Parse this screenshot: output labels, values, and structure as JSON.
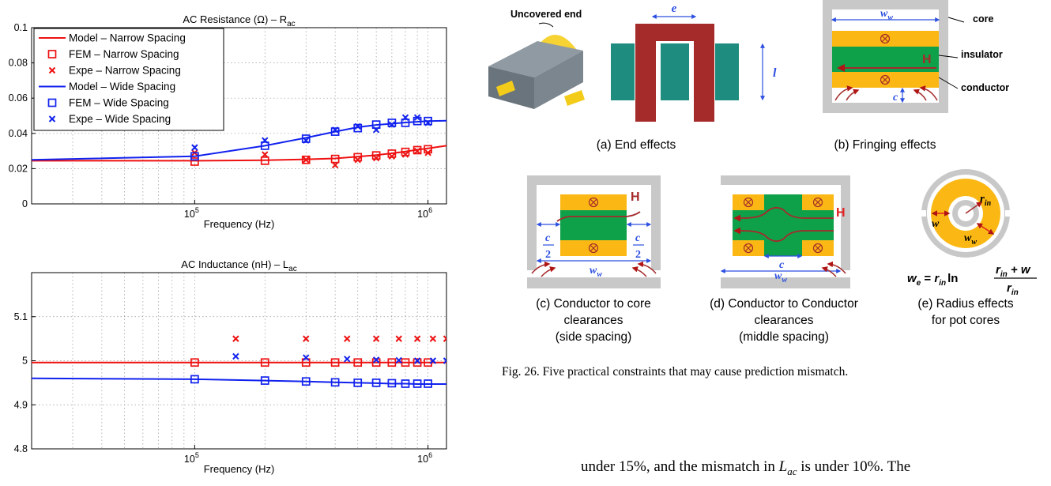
{
  "chart_data": [
    {
      "type": "line",
      "title": "AC Resistance (Ω) – R",
      "title_sub": "ac",
      "xlabel": "Frequency (Hz)",
      "ylabel": "",
      "xscale": "log",
      "xlim": [
        20000,
        1200000
      ],
      "ylim": [
        0,
        0.1
      ],
      "yticks": [
        "0",
        "0.02",
        "0.04",
        "0.06",
        "0.08",
        "0.1"
      ],
      "xticks": [
        {
          "value": 100000,
          "base": "10",
          "exp": "5"
        },
        {
          "value": 1000000,
          "base": "10",
          "exp": "6"
        }
      ],
      "grid": true,
      "legend_position": "top-left",
      "series": [
        {
          "name": "Model – Narrow Spacing",
          "style": "line",
          "color": "#ee1111",
          "x": [
            20000,
            100000,
            200000,
            300000,
            400000,
            500000,
            600000,
            700000,
            800000,
            900000,
            1000000,
            1200000
          ],
          "y": [
            0.0245,
            0.0245,
            0.0248,
            0.0253,
            0.0258,
            0.0268,
            0.0277,
            0.0287,
            0.0297,
            0.0307,
            0.0315,
            0.033
          ]
        },
        {
          "name": "FEM – Narrow Spacing",
          "style": "square",
          "color": "#ee1111",
          "x": [
            100000,
            200000,
            300000,
            400000,
            500000,
            600000,
            700000,
            800000,
            900000,
            1000000
          ],
          "y": [
            0.024,
            0.0245,
            0.025,
            0.0255,
            0.0265,
            0.0275,
            0.0285,
            0.0295,
            0.0305,
            0.031
          ]
        },
        {
          "name": "Expe – Narrow Spacing",
          "style": "x",
          "color": "#ee1111",
          "x": [
            100000,
            200000,
            300000,
            400000,
            500000,
            600000,
            700000,
            800000,
            900000,
            1000000
          ],
          "y": [
            0.029,
            0.028,
            0.025,
            0.022,
            0.025,
            0.026,
            0.027,
            0.028,
            0.03,
            0.029
          ]
        },
        {
          "name": "Model – Wide Spacing",
          "style": "line",
          "color": "#1122ee",
          "x": [
            20000,
            100000,
            200000,
            300000,
            400000,
            500000,
            600000,
            700000,
            800000,
            900000,
            1000000,
            1200000
          ],
          "y": [
            0.025,
            0.027,
            0.033,
            0.0375,
            0.041,
            0.0435,
            0.0448,
            0.0455,
            0.0462,
            0.0466,
            0.047,
            0.0472
          ]
        },
        {
          "name": "FEM – Wide Spacing",
          "style": "square",
          "color": "#1122ee",
          "x": [
            100000,
            200000,
            300000,
            400000,
            500000,
            600000,
            700000,
            800000,
            900000,
            1000000
          ],
          "y": [
            0.027,
            0.033,
            0.037,
            0.041,
            0.043,
            0.045,
            0.046,
            0.046,
            0.047,
            0.047
          ]
        },
        {
          "name": "Expe – Wide Spacing",
          "style": "x",
          "color": "#1122ee",
          "x": [
            100000,
            200000,
            300000,
            400000,
            500000,
            600000,
            700000,
            800000,
            900000,
            1000000
          ],
          "y": [
            0.032,
            0.036,
            0.036,
            0.042,
            0.044,
            0.042,
            0.045,
            0.049,
            0.049,
            0.046
          ]
        }
      ]
    },
    {
      "type": "line",
      "title": "AC Inductance (nH) – L",
      "title_sub": "ac",
      "xlabel": "Frequency (Hz)",
      "ylabel": "",
      "xscale": "log",
      "xlim": [
        20000,
        1200000
      ],
      "ylim": [
        4.8,
        5.2
      ],
      "yticks": [
        "4.8",
        "4.9",
        "5",
        "5.1"
      ],
      "xticks": [
        {
          "value": 100000,
          "base": "10",
          "exp": "5"
        },
        {
          "value": 1000000,
          "base": "10",
          "exp": "6"
        }
      ],
      "grid": true,
      "series": [
        {
          "style": "line",
          "color": "#ee1111",
          "x": [
            20000,
            1200000
          ],
          "y": [
            4.996,
            4.996
          ]
        },
        {
          "style": "square",
          "color": "#ee1111",
          "x": [
            100000,
            200000,
            300000,
            400000,
            500000,
            600000,
            700000,
            800000,
            900000,
            1000000
          ],
          "y": [
            4.996,
            4.996,
            4.996,
            4.996,
            4.996,
            4.996,
            4.996,
            4.996,
            4.996,
            4.996
          ]
        },
        {
          "style": "x",
          "color": "#ee1111",
          "x": [
            150000,
            300000,
            450000,
            600000,
            750000,
            900000,
            1050000,
            1200000
          ],
          "y": [
            5.05,
            5.05,
            5.05,
            5.05,
            5.05,
            5.05,
            5.05,
            5.05
          ]
        },
        {
          "style": "line",
          "color": "#1122ee",
          "x": [
            20000,
            100000,
            200000,
            300000,
            400000,
            500000,
            600000,
            700000,
            800000,
            900000,
            1000000,
            1200000
          ],
          "y": [
            4.96,
            4.958,
            4.955,
            4.953,
            4.951,
            4.95,
            4.949,
            4.948,
            4.948,
            4.947,
            4.947,
            4.947
          ]
        },
        {
          "style": "square",
          "color": "#1122ee",
          "x": [
            100000,
            200000,
            300000,
            400000,
            500000,
            600000,
            700000,
            800000,
            900000,
            1000000
          ],
          "y": [
            4.958,
            4.955,
            4.953,
            4.951,
            4.95,
            4.95,
            4.949,
            4.948,
            4.948,
            4.948
          ]
        },
        {
          "style": "x",
          "color": "#1122ee",
          "x": [
            150000,
            300000,
            450000,
            600000,
            750000,
            900000,
            1050000,
            1200000
          ],
          "y": [
            5.01,
            5.007,
            5.004,
            5.002,
            5.001,
            5.0,
            5.0,
            5.0
          ]
        }
      ]
    }
  ],
  "figure": {
    "panel_a": {
      "uncovered_end": "Uncovered end",
      "e": "e",
      "l": "l",
      "caption": "(a) End effects"
    },
    "panel_b": {
      "ww": "w",
      "ww_sub": "w",
      "core": "core",
      "insulator": "insulator",
      "conductor": "conductor",
      "H": "H",
      "c": "c",
      "caption": "(b) Fringing effects"
    },
    "panel_c": {
      "H": "H",
      "c": "c",
      "two": "2",
      "ww": "w",
      "ww_sub": "w",
      "caption_lines": [
        "(c) Conductor to core",
        "clearances",
        "(side spacing)"
      ]
    },
    "panel_d": {
      "H": "H",
      "c": "c",
      "ww": "w",
      "ww_sub": "w",
      "caption_lines": [
        "(d) Conductor to Conductor",
        "clearances",
        "(middle spacing)"
      ]
    },
    "panel_e": {
      "r": "r",
      "r_sub": "in",
      "w": "w",
      "ww": "w",
      "ww_sub": "w",
      "formula": {
        "lhs": "w",
        "lhs_sub": "e",
        "eq": " = ",
        "r": "r",
        "r_sub": "in",
        "ln": "ln",
        "num": "r",
        "num_sub": "in",
        "num_rest": " + w",
        "den": "r",
        "den_sub": "in"
      },
      "caption_lines": [
        "(e) Radius effects",
        "for pot cores"
      ]
    },
    "caption": "Fig. 26.   Five practical constraints that may cause prediction mismatch."
  },
  "body_text": {
    "part1": "under 15%, and the mismatch in ",
    "L": "L",
    "L_sub": "ac",
    "part2": " is under 10%. The"
  },
  "colors": {
    "red": "#ee1111",
    "blue": "#1122ee",
    "gold": "#fbb814",
    "green": "#0fa14a",
    "teal": "#1e8c7e",
    "maroon": "#a52a2a",
    "gray": "#c8c8c8",
    "arrow": "#b01515",
    "dim": "#2c4fe0"
  }
}
